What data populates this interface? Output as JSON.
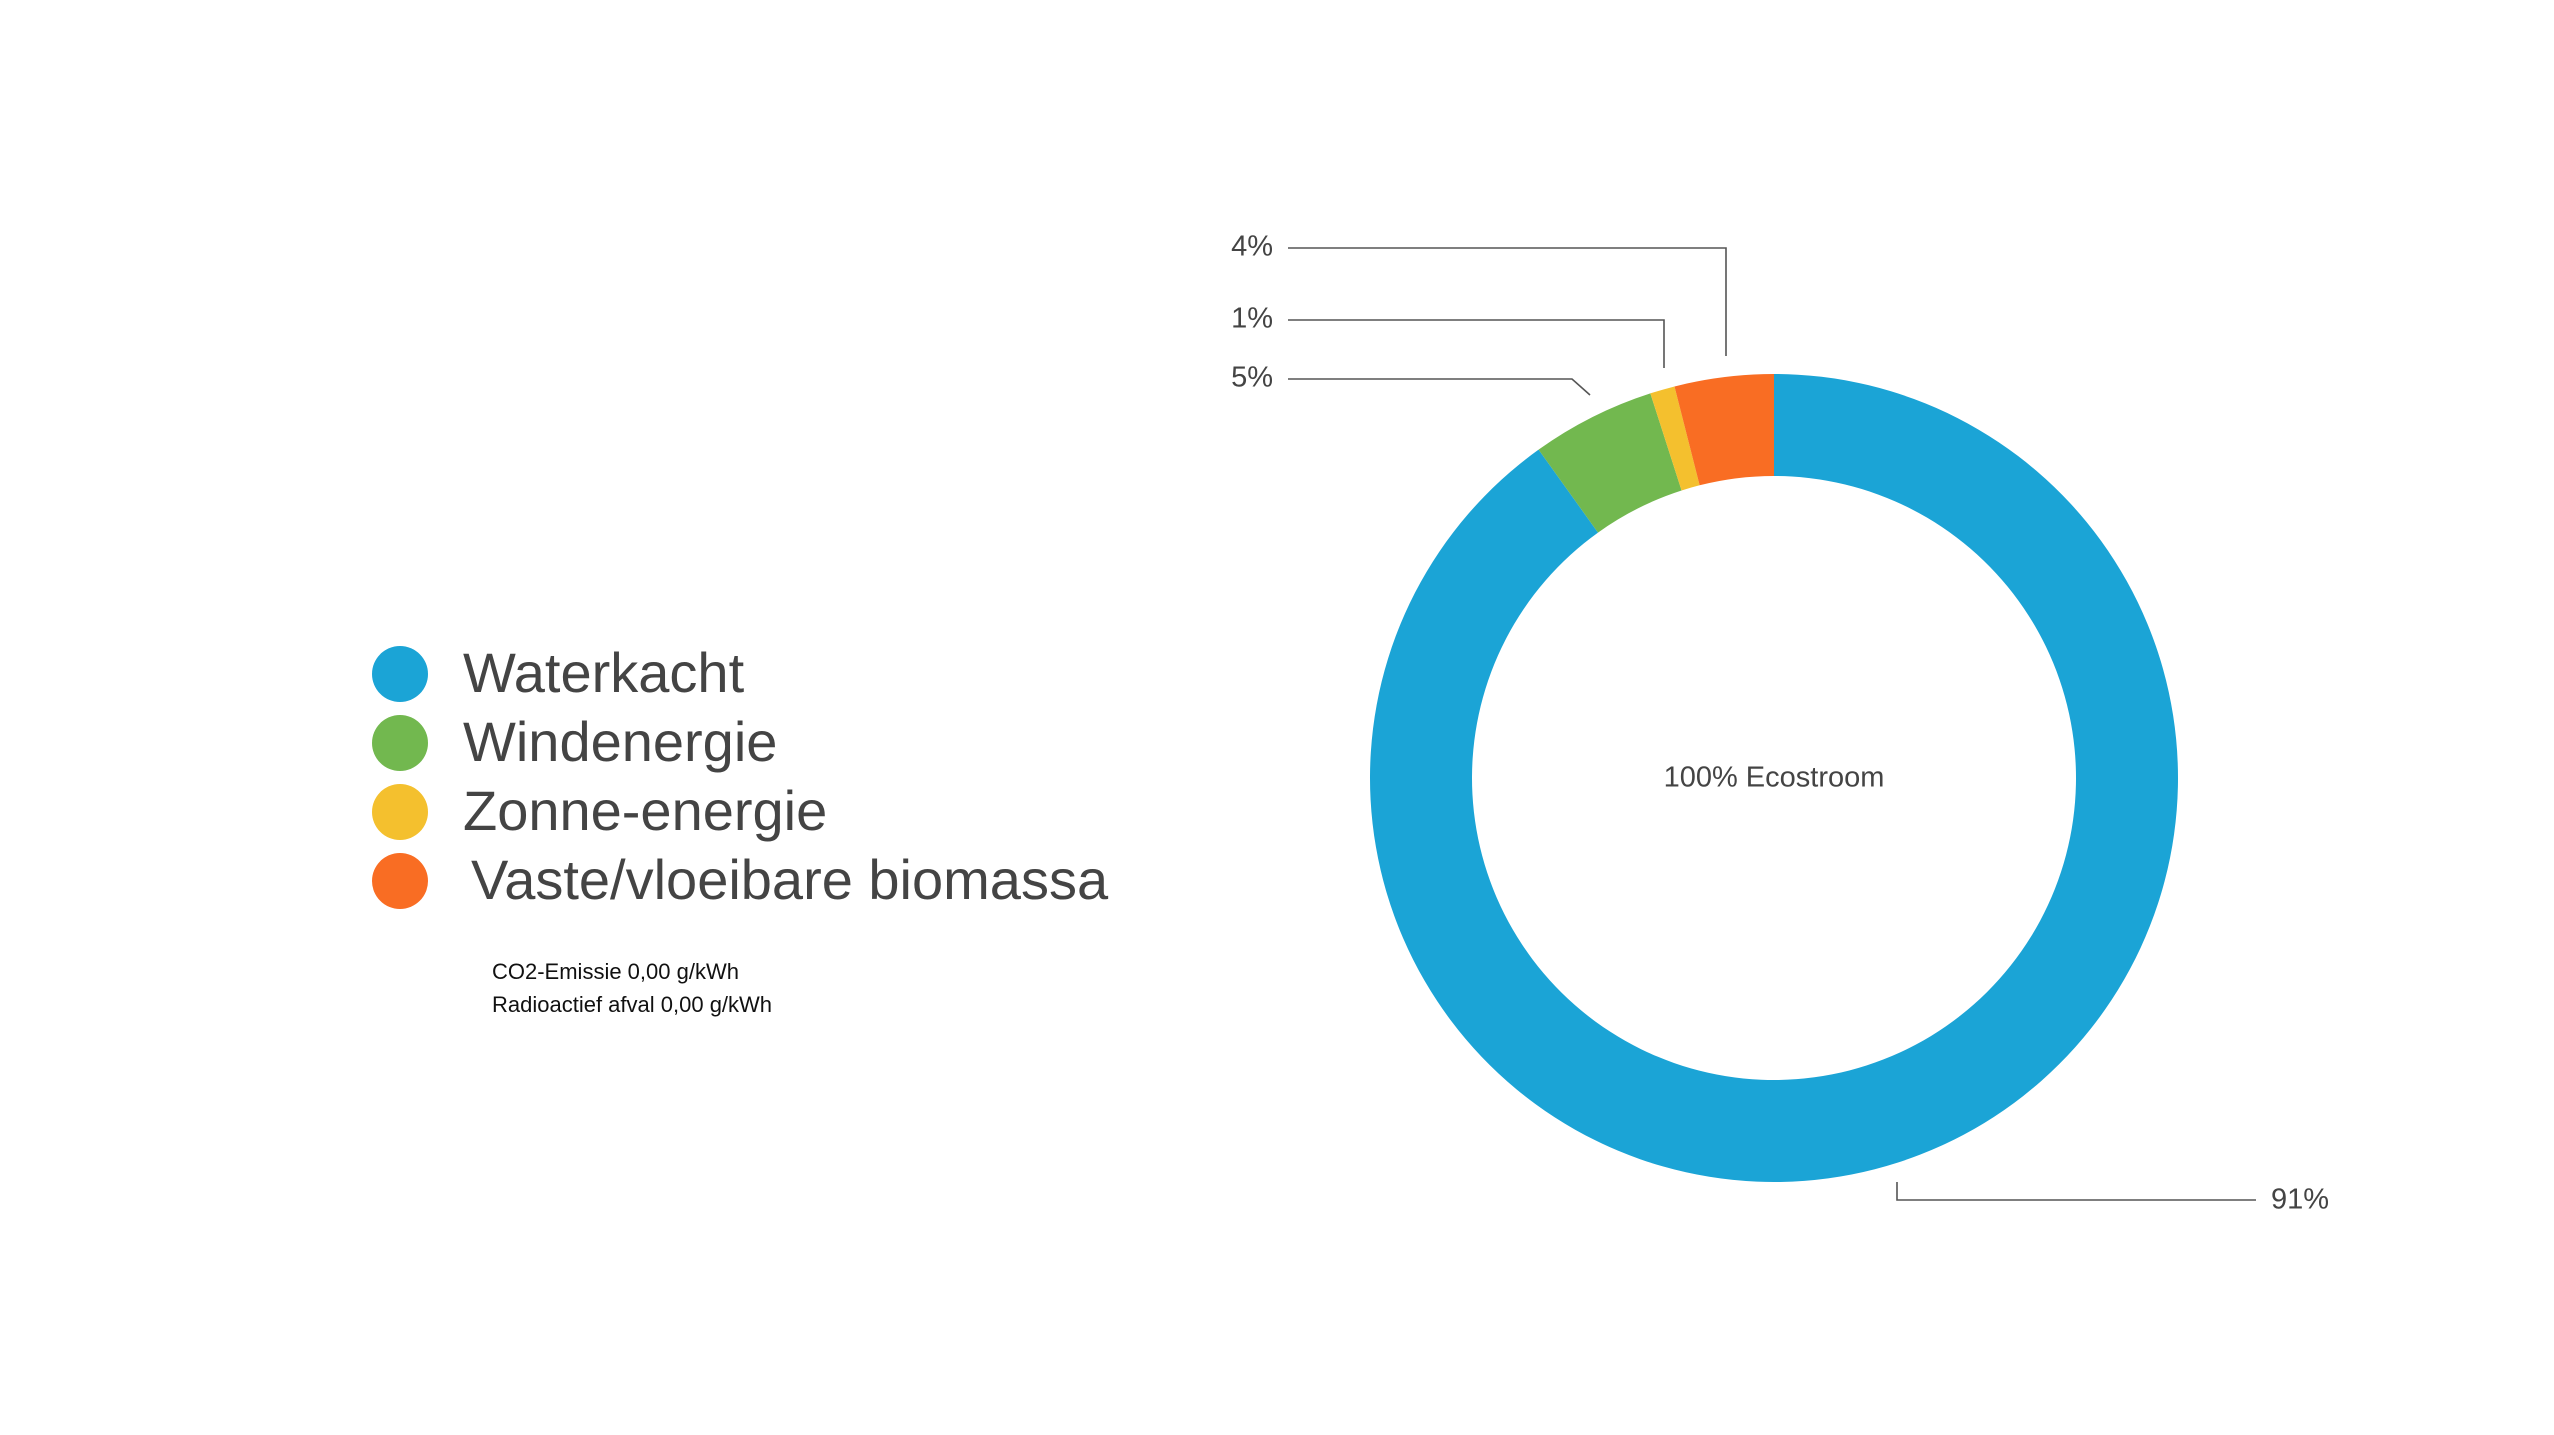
{
  "chart_data": {
    "type": "donut",
    "center_label": "100% Ecostroom",
    "categories": [
      "Waterkacht",
      "Windenergie",
      "Zonne-energie",
      "Vaste/vloeibare biomassa"
    ],
    "values": [
      91,
      5,
      1,
      4
    ],
    "value_labels": [
      "91%",
      "5%",
      "1%",
      "4%"
    ],
    "colors": [
      "#1ba4d6",
      "#72b84f",
      "#f4c02e",
      "#f96d23"
    ],
    "notes": [
      "CO2-Emissie 0,00 g/kWh",
      "Radioactief afval 0,00 g/kWh"
    ]
  }
}
